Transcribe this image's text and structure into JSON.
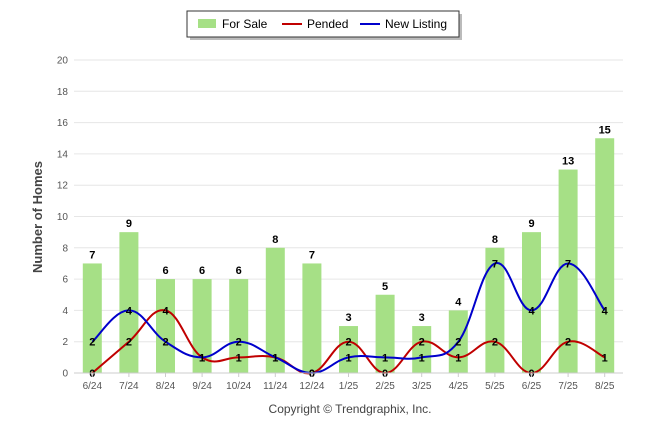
{
  "chart_data": {
    "type": "bar",
    "categories": [
      "6/24",
      "7/24",
      "8/24",
      "9/24",
      "10/24",
      "11/24",
      "12/24",
      "1/25",
      "2/25",
      "3/25",
      "4/25",
      "5/25",
      "6/25",
      "7/25",
      "8/25"
    ],
    "series": [
      {
        "name": "For Sale",
        "type": "bar",
        "color": "#a6e086",
        "values": [
          7,
          9,
          6,
          6,
          6,
          8,
          7,
          3,
          5,
          3,
          4,
          8,
          9,
          13,
          15
        ]
      },
      {
        "name": "Pended",
        "type": "line",
        "color": "#c00000",
        "values": [
          0,
          2,
          4,
          1,
          1,
          1,
          0,
          2,
          0,
          2,
          1,
          2,
          0,
          2,
          1
        ]
      },
      {
        "name": "New Listing",
        "type": "line",
        "color": "#0000cc",
        "values": [
          2,
          4,
          2,
          1,
          2,
          1,
          0,
          1,
          1,
          1,
          2,
          7,
          4,
          7,
          4
        ]
      }
    ],
    "ylabel": "Number of Homes",
    "xlabel": "",
    "ylim": [
      0,
      20
    ],
    "yticks": [
      0,
      2,
      4,
      6,
      8,
      10,
      12,
      14,
      16,
      18,
      20
    ],
    "grid": true,
    "legend": "top-center",
    "footer": "Copyright © Trendgraphix, Inc."
  }
}
